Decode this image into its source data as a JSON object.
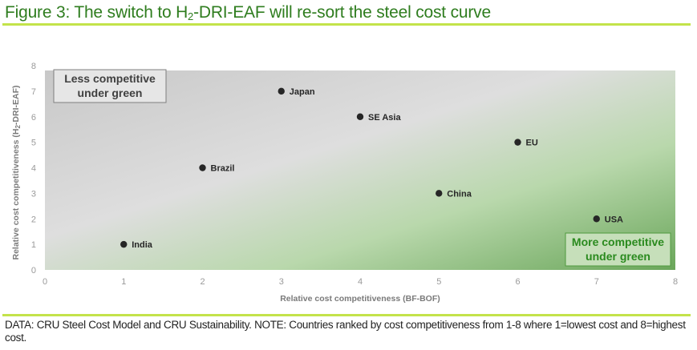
{
  "figure": {
    "title_prefix": "Figure 3: The switch to H",
    "title_sub": "2",
    "title_suffix": "-DRI-EAF will re-sort the steel cost curve",
    "footnote": "DATA: CRU Steel Cost Model and CRU Sustainability. NOTE: Countries ranked by cost competitiveness from 1-8 where 1=lowest cost and 8=highest cost.",
    "accent_color": "#c3e34a",
    "title_color": "#2f7d1f"
  },
  "chart_data": {
    "type": "scatter",
    "title": "The switch to H2-DRI-EAF will re-sort the steel cost curve",
    "xlabel": "Relative cost competitiveness (BF-BOF)",
    "ylabel_prefix": "Relative cost competitiveness (H",
    "ylabel_sub": "2",
    "ylabel_suffix": "-DRI-EAF)",
    "xlim": [
      0,
      8
    ],
    "ylim": [
      0,
      8
    ],
    "x_ticks": [
      "0",
      "1",
      "2",
      "3",
      "4",
      "5",
      "6",
      "7",
      "8"
    ],
    "y_ticks": [
      "0",
      "1",
      "2",
      "3",
      "4",
      "5",
      "6",
      "7",
      "8"
    ],
    "grid": false,
    "legend": "none",
    "background": {
      "description": "diagonal gradient from grey (top-left) to green (bottom-right)",
      "colors": [
        "#c8c8c8",
        "#dedede",
        "#b9d8ac",
        "#6aa65a"
      ]
    },
    "points": [
      {
        "label": "India",
        "x": 1,
        "y": 1
      },
      {
        "label": "Brazil",
        "x": 2,
        "y": 4
      },
      {
        "label": "Japan",
        "x": 3,
        "y": 7
      },
      {
        "label": "SE Asia",
        "x": 4,
        "y": 6
      },
      {
        "label": "China",
        "x": 5,
        "y": 3
      },
      {
        "label": "EU",
        "x": 6,
        "y": 5
      },
      {
        "label": "USA",
        "x": 7,
        "y": 2
      }
    ],
    "annotations": [
      {
        "id": "less",
        "lines": [
          "Less competitive",
          "under green"
        ],
        "placement": "top-left"
      },
      {
        "id": "more",
        "lines": [
          "More competitive",
          "under green"
        ],
        "placement": "bottom-right"
      }
    ]
  }
}
